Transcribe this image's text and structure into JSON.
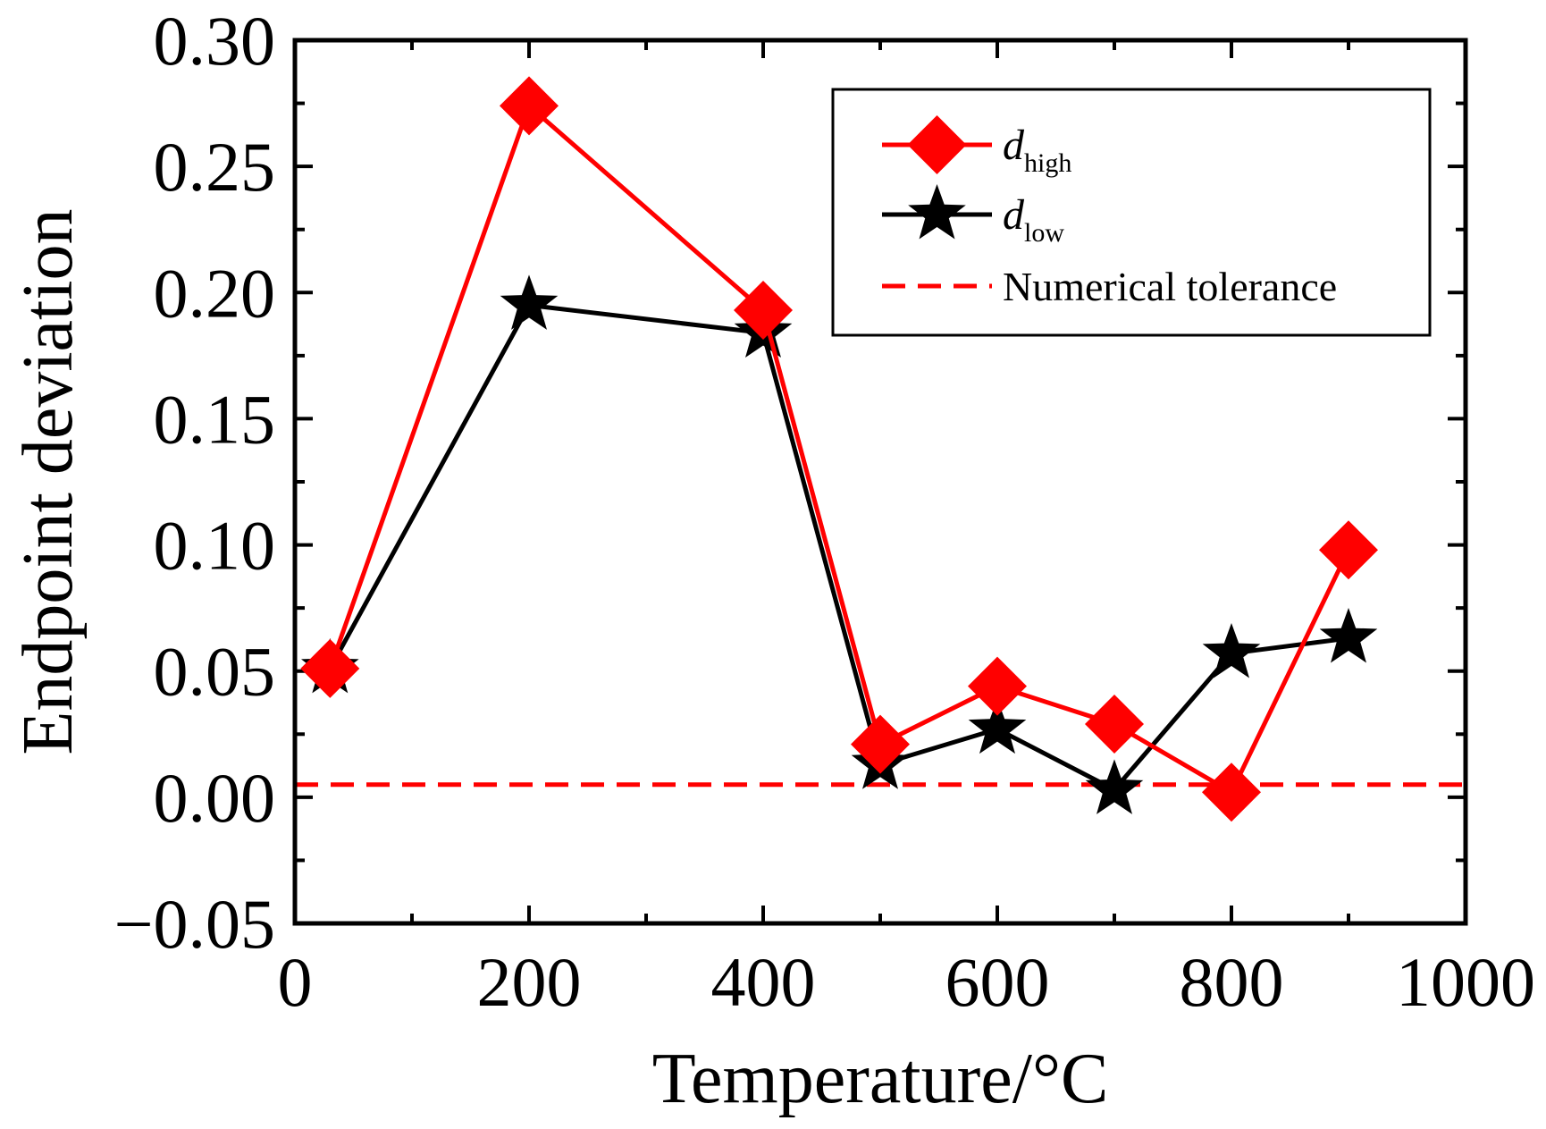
{
  "chart_data": {
    "type": "line",
    "xlabel": "Temperature/°C",
    "ylabel": "Endpoint deviation",
    "xlim": [
      0,
      1000
    ],
    "ylim": [
      -0.05,
      0.3
    ],
    "x_ticks": [
      0,
      200,
      400,
      600,
      800,
      1000
    ],
    "x_tick_labels": [
      "0",
      "200",
      "400",
      "600",
      "800",
      "1000"
    ],
    "x_minor_ticks": [
      100,
      300,
      500,
      700,
      900
    ],
    "y_ticks": [
      -0.05,
      0.0,
      0.05,
      0.1,
      0.15,
      0.2,
      0.25,
      0.3
    ],
    "y_tick_labels": [
      "−0.05",
      "0.00",
      "0.05",
      "0.10",
      "0.15",
      "0.20",
      "0.25",
      "0.30"
    ],
    "y_minor_ticks": [
      -0.025,
      0.025,
      0.075,
      0.125,
      0.175,
      0.225,
      0.275
    ],
    "series": [
      {
        "name": "d_high",
        "legend_symbol": "d",
        "legend_sub": "high",
        "color": "#ff0000",
        "marker": "diamond",
        "x": [
          30,
          200,
          400,
          500,
          600,
          700,
          800,
          900
        ],
        "values": [
          0.051,
          0.274,
          0.193,
          0.021,
          0.044,
          0.029,
          0.002,
          0.098
        ]
      },
      {
        "name": "d_low",
        "legend_symbol": "d",
        "legend_sub": "low",
        "color": "#000000",
        "marker": "star",
        "x": [
          30,
          200,
          400,
          500,
          600,
          700,
          800,
          900
        ],
        "values": [
          0.051,
          0.195,
          0.184,
          0.013,
          0.027,
          0.003,
          0.057,
          0.063
        ]
      }
    ],
    "reference_lines": [
      {
        "name": "Numerical tolerance",
        "y": 0.005,
        "color": "#ff0000",
        "style": "dashed"
      }
    ],
    "legend": {
      "placement": "top-right",
      "entries": [
        "d_high",
        "d_low",
        "Numerical tolerance"
      ]
    }
  }
}
